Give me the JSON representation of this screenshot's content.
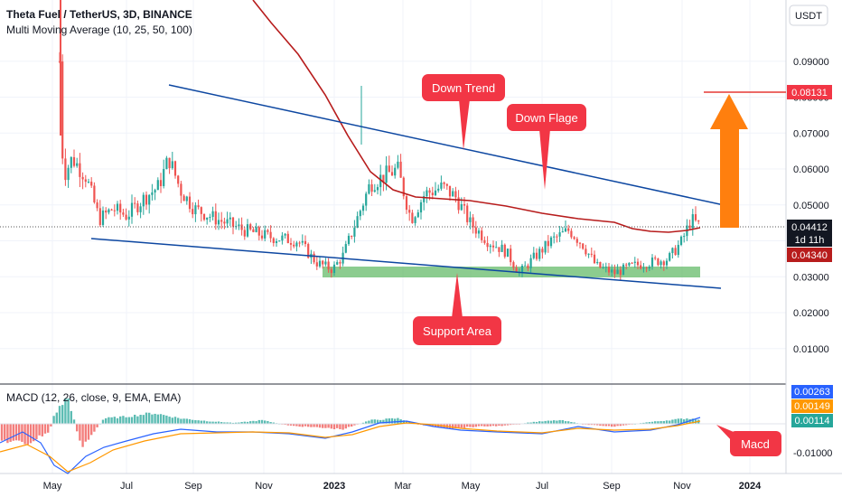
{
  "header": {
    "title": "Theta Fuel / TetherUS, 3D, BINANCE",
    "indicator": "Multi Moving Average (10, 25, 50, 100)",
    "currency_button": "USDT"
  },
  "colors": {
    "up": "#26a69a",
    "down": "#ef5350",
    "ma": "#b71c1c",
    "trendline": "#0d47a1",
    "support_zone": "#66bb6a",
    "callout": "#f23645",
    "arrow": "#ff7f0e",
    "macd_line": "#2962ff",
    "signal_line": "#ff9800"
  },
  "chart_data": [
    {
      "type": "line",
      "title": "Theta Fuel / TetherUS, 3D, BINANCE",
      "y_ticks": [
        "0.09000",
        "0.08000",
        "0.07000",
        "0.06000",
        "0.05000",
        "0.04000",
        "0.03000",
        "0.02000",
        "0.01000"
      ],
      "y_tick_values": [
        0.09,
        0.08,
        0.07,
        0.06,
        0.05,
        0.04,
        0.03,
        0.02,
        0.01
      ],
      "x_labels": [
        "May",
        "Jul",
        "Sep",
        "Nov",
        "2023",
        "Mar",
        "May",
        "Jul",
        "Sep",
        "Nov",
        "2024"
      ],
      "price_labels": {
        "target": "0.08131",
        "current": "0.04412",
        "countdown": "1d 11h",
        "ma": "0.04340"
      },
      "series": [
        {
          "name": "close",
          "x": [
            "2022-05",
            "2022-06",
            "2022-07",
            "2022-08",
            "2022-09",
            "2022-10",
            "2022-11",
            "2022-12",
            "2023-01",
            "2023-02",
            "2023-03",
            "2023-04",
            "2023-05",
            "2023-06",
            "2023-07",
            "2023-08",
            "2023-09",
            "2023-10",
            "2023-11"
          ],
          "values": [
            0.058,
            0.052,
            0.046,
            0.052,
            0.054,
            0.047,
            0.041,
            0.033,
            0.045,
            0.057,
            0.052,
            0.052,
            0.04,
            0.034,
            0.044,
            0.037,
            0.031,
            0.036,
            0.044
          ]
        }
      ],
      "annotations": [
        "Down Trend",
        "Down Flage",
        "Support Area"
      ]
    },
    {
      "type": "bar",
      "title": "MACD (12, 26, close, 9, EMA, EMA)",
      "y_ticks": [
        "-0.01000"
      ],
      "y_tick_values": [
        -0.01
      ],
      "value_labels": [
        "0.00263",
        "0.00149",
        "0.00114"
      ],
      "annotations": [
        "Macd"
      ]
    }
  ]
}
